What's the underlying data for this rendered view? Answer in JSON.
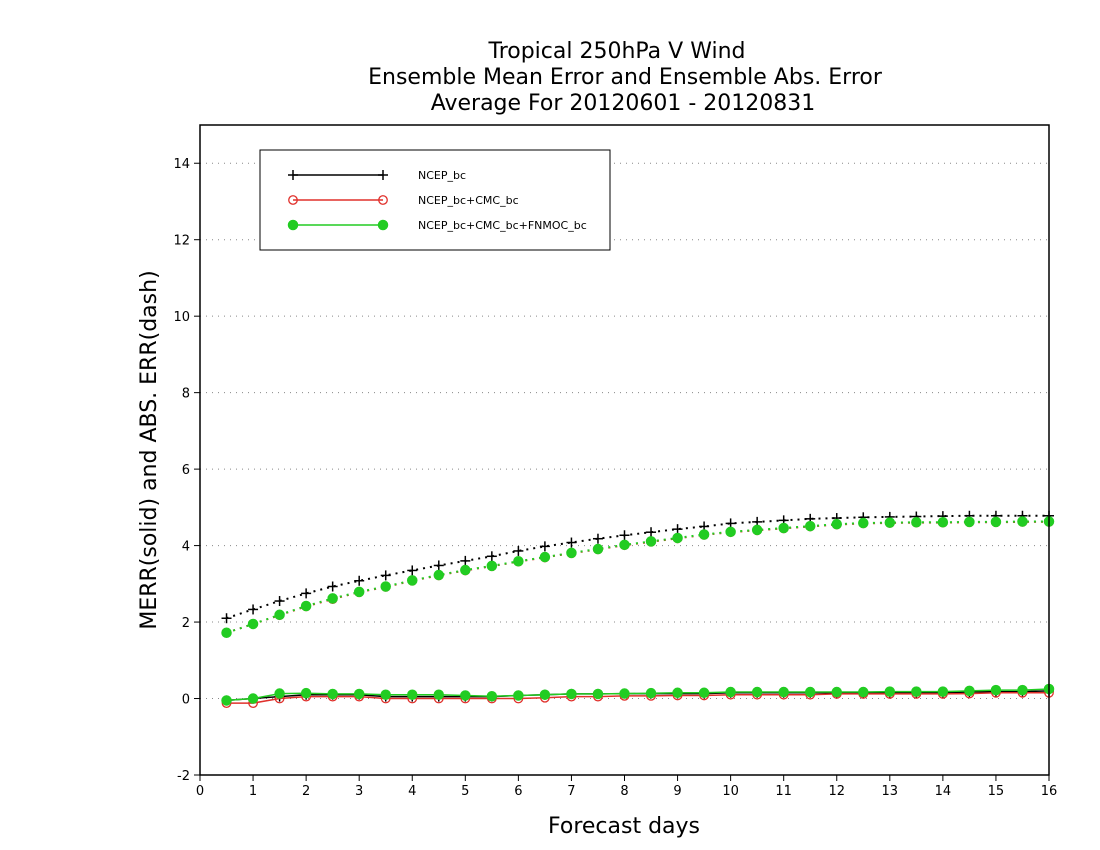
{
  "chart_data": {
    "type": "line",
    "title": [
      "Tropical 250hPa V Wind",
      "Ensemble Mean Error and Ensemble Abs. Error",
      "Average For 20120601 - 20120831"
    ],
    "xlabel": "Forecast days",
    "ylabel": "MERR(solid) and ABS. ERR(dash)",
    "xlim": [
      0,
      16
    ],
    "ylim": [
      -2,
      15
    ],
    "xticks": [
      0,
      1,
      2,
      3,
      4,
      5,
      6,
      7,
      8,
      9,
      10,
      11,
      12,
      13,
      14,
      15,
      16
    ],
    "yticks": [
      -2,
      0,
      2,
      4,
      6,
      8,
      10,
      12,
      14
    ],
    "grid": "horizontal dotted",
    "legend_position": "top-left",
    "x": [
      0.5,
      1,
      1.5,
      2,
      2.5,
      3,
      3.5,
      4,
      4.5,
      5,
      5.5,
      6,
      6.5,
      7,
      7.5,
      8,
      8.5,
      9,
      9.5,
      10,
      10.5,
      11,
      11.5,
      12,
      12.5,
      13,
      13.5,
      14,
      14.5,
      15,
      15.5,
      16
    ],
    "series": [
      {
        "name": "NCEP_bc",
        "color": "#000000",
        "marker": "plus",
        "merr": [
          -0.05,
          0.0,
          0.05,
          0.1,
          0.1,
          0.1,
          0.05,
          0.05,
          0.05,
          0.05,
          0.05,
          0.08,
          0.1,
          0.12,
          0.12,
          0.13,
          0.13,
          0.13,
          0.13,
          0.15,
          0.15,
          0.15,
          0.15,
          0.15,
          0.15,
          0.15,
          0.15,
          0.15,
          0.17,
          0.18,
          0.18,
          0.2
        ],
        "abs_err": [
          2.1,
          2.33,
          2.55,
          2.75,
          2.93,
          3.08,
          3.22,
          3.35,
          3.48,
          3.6,
          3.72,
          3.86,
          3.98,
          4.08,
          4.18,
          4.27,
          4.35,
          4.43,
          4.5,
          4.58,
          4.62,
          4.66,
          4.7,
          4.72,
          4.74,
          4.75,
          4.76,
          4.77,
          4.78,
          4.78,
          4.78,
          4.78
        ]
      },
      {
        "name": "NCEP_bc+CMC_bc",
        "color": "#e0302b",
        "marker": "open-circle",
        "merr": [
          -0.12,
          -0.12,
          0.0,
          0.05,
          0.05,
          0.05,
          0.0,
          0.0,
          0.0,
          0.0,
          0.0,
          0.0,
          0.02,
          0.05,
          0.05,
          0.07,
          0.07,
          0.08,
          0.08,
          0.1,
          0.1,
          0.1,
          0.1,
          0.12,
          0.12,
          0.12,
          0.12,
          0.12,
          0.13,
          0.15,
          0.15,
          0.15
        ],
        "abs_err": [
          1.72,
          1.95,
          2.18,
          2.41,
          2.6,
          2.78,
          2.92,
          3.08,
          3.22,
          3.35,
          3.46,
          3.58,
          3.69,
          3.8,
          3.9,
          4.01,
          4.1,
          4.19,
          4.28,
          4.35,
          4.4,
          4.45,
          4.5,
          4.55,
          4.58,
          4.59,
          4.6,
          4.6,
          4.61,
          4.61,
          4.62,
          4.62
        ]
      },
      {
        "name": "NCEP_bc+CMC_bc+FNMOC_bc",
        "color": "#22cc22",
        "marker": "filled-circle",
        "merr": [
          -0.05,
          0.0,
          0.13,
          0.14,
          0.12,
          0.12,
          0.1,
          0.1,
          0.1,
          0.08,
          0.06,
          0.08,
          0.1,
          0.12,
          0.12,
          0.13,
          0.14,
          0.15,
          0.15,
          0.17,
          0.17,
          0.17,
          0.17,
          0.17,
          0.17,
          0.18,
          0.18,
          0.18,
          0.2,
          0.22,
          0.22,
          0.25
        ],
        "abs_err": [
          1.72,
          1.95,
          2.19,
          2.42,
          2.62,
          2.79,
          2.93,
          3.09,
          3.23,
          3.36,
          3.47,
          3.59,
          3.7,
          3.81,
          3.91,
          4.02,
          4.11,
          4.2,
          4.29,
          4.36,
          4.41,
          4.46,
          4.51,
          4.56,
          4.59,
          4.6,
          4.61,
          4.61,
          4.62,
          4.62,
          4.63,
          4.63
        ]
      }
    ]
  }
}
